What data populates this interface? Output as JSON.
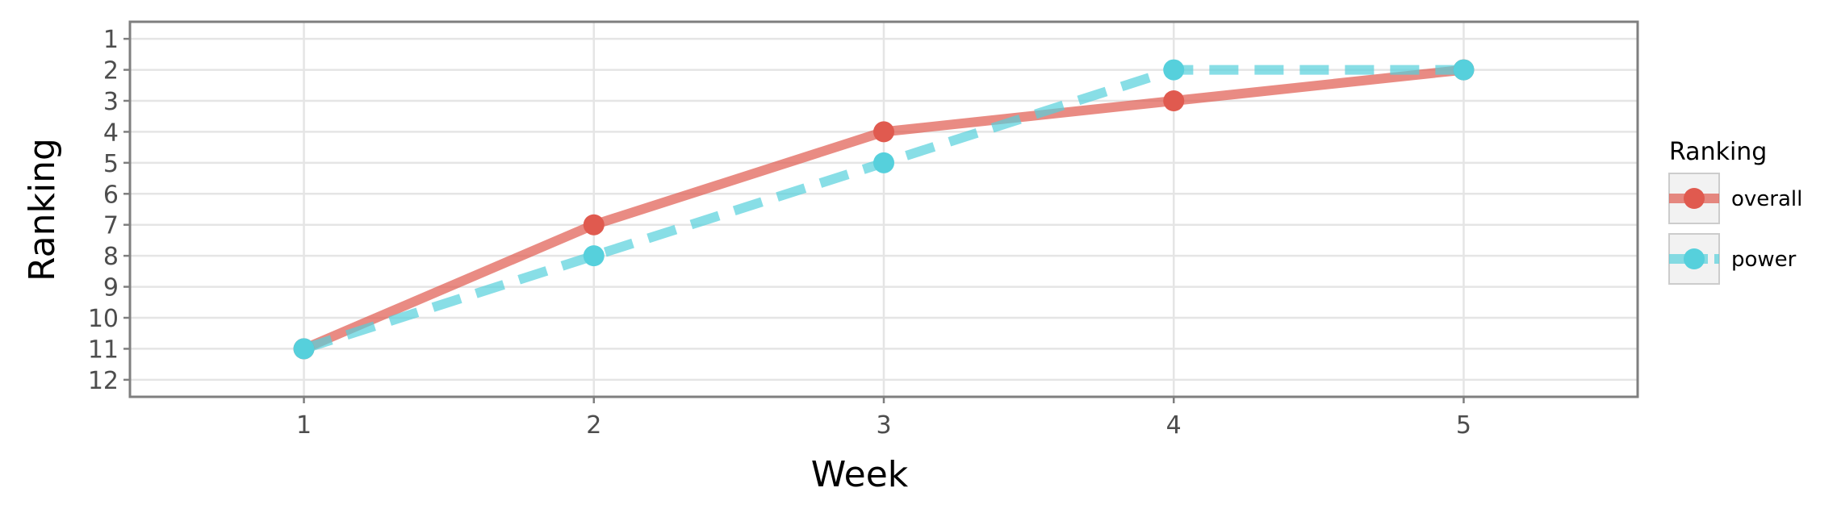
{
  "chart_data": {
    "type": "line",
    "title": "",
    "xlabel": "Week",
    "ylabel": "Ranking",
    "x": [
      1,
      2,
      3,
      4,
      5
    ],
    "x_ticks": [
      "1",
      "2",
      "3",
      "4",
      "5"
    ],
    "y_ticks": [
      "1",
      "2",
      "3",
      "4",
      "5",
      "6",
      "7",
      "8",
      "9",
      "10",
      "11",
      "12"
    ],
    "xlim": [
      0.4,
      5.6
    ],
    "ylim": [
      12.55,
      0.45
    ],
    "y_reversed": true,
    "grid": true,
    "legend": {
      "title": "Ranking",
      "position": "right"
    },
    "series": [
      {
        "name": "overall",
        "values": [
          11,
          7,
          4,
          3,
          2
        ],
        "color": "#e05a4f",
        "line_style": "solid"
      },
      {
        "name": "power",
        "values": [
          11,
          8,
          5,
          2,
          2
        ],
        "color": "#56d0dc",
        "line_style": "dashed"
      }
    ]
  }
}
